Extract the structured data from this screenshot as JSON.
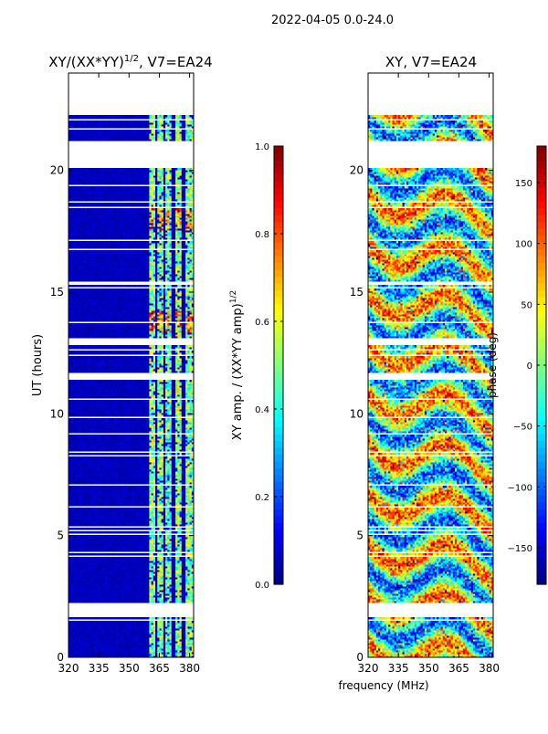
{
  "suptitle": "2022-04-05 0.0-24.0",
  "shared": {
    "xlabel": "frequency (MHz)",
    "ylabel": "UT (hours)",
    "colormap": [
      "#00007f",
      "#0000ff",
      "#007fff",
      "#00ffff",
      "#7fff7f",
      "#ffff00",
      "#ff7f00",
      "#ff0000",
      "#7f0000"
    ]
  },
  "chart_data": [
    {
      "type": "heatmap",
      "title_main": "XY/(XX*YY)",
      "title_sup": "1/2",
      "title_rest": ", V7=EA24",
      "xlim": [
        320,
        382
      ],
      "xticks": [
        320,
        335,
        350,
        365,
        380
      ],
      "ylim": [
        0,
        24
      ],
      "yticks": [
        0,
        5,
        10,
        15,
        20
      ],
      "colorbar": {
        "label_main": "XY amp. / (XX*YY amp)",
        "label_sup": "1/2",
        "range": [
          0.0,
          1.0
        ],
        "ticks": [
          "0.0",
          "0.2",
          "0.4",
          "0.6",
          "0.8",
          "1.0"
        ],
        "tick_values": [
          0.0,
          0.2,
          0.4,
          0.6,
          0.8,
          1.0
        ]
      }
    },
    {
      "type": "heatmap",
      "title": "XY, V7=EA24",
      "xlim": [
        320,
        382
      ],
      "xticks": [
        320,
        335,
        350,
        365,
        380
      ],
      "ylim": [
        0,
        24
      ],
      "yticks": [
        0,
        5,
        10,
        15,
        20
      ],
      "colorbar": {
        "label": "phase (deg)",
        "range": [
          -180,
          180
        ],
        "ticks": [
          "−150",
          "−100",
          "−50",
          "0",
          "50",
          "100",
          "150"
        ],
        "tick_values": [
          -150,
          -100,
          -50,
          0,
          50,
          100,
          150
        ]
      }
    }
  ]
}
